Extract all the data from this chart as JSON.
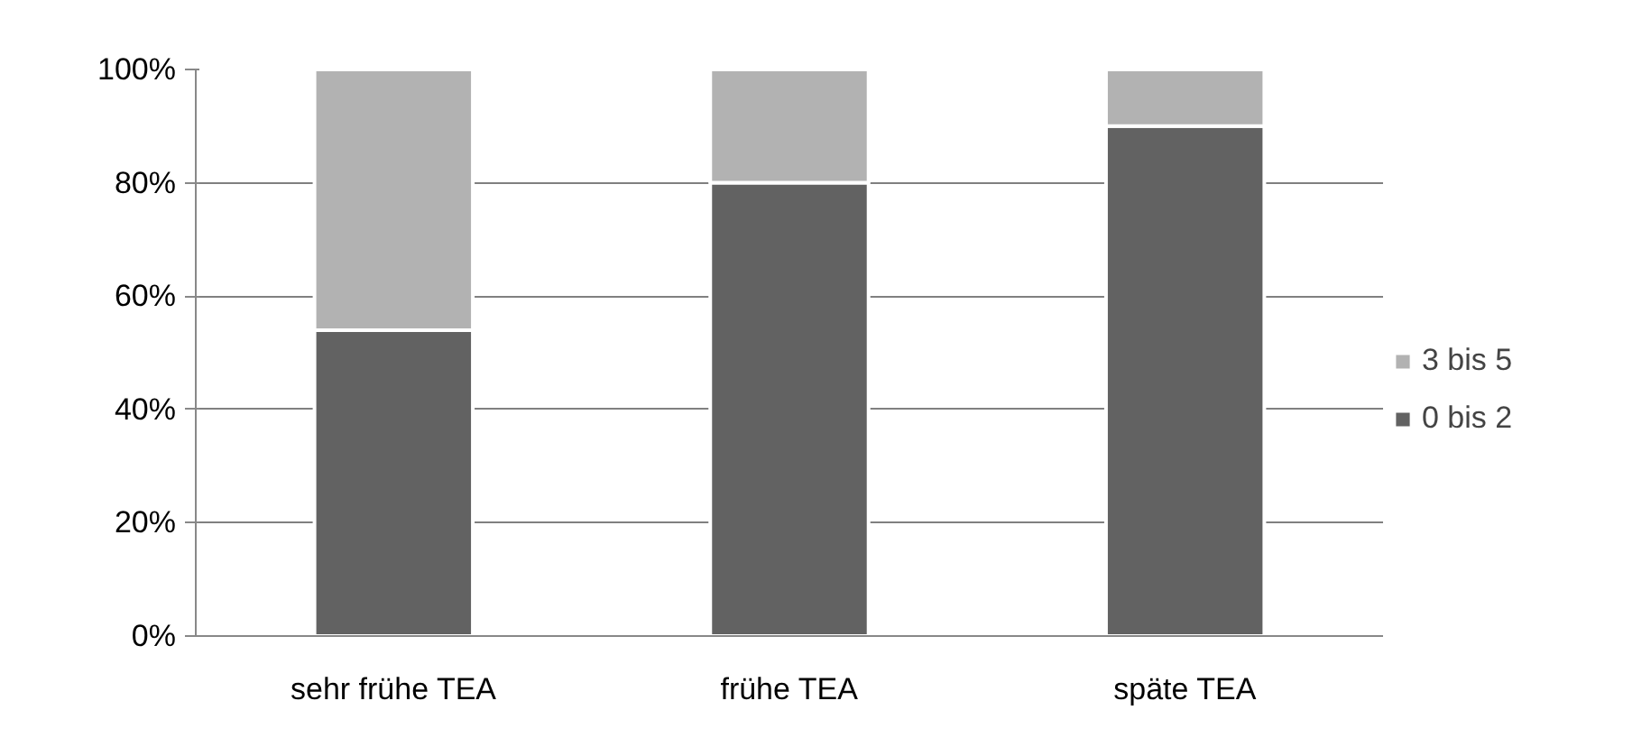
{
  "chart_data": {
    "type": "bar",
    "stacked": true,
    "categories": [
      "sehr frühe TEA",
      "frühe TEA",
      "späte TEA"
    ],
    "series": [
      {
        "name": "0 bis 2",
        "color": "#626262",
        "values": [
          54,
          80,
          90
        ]
      },
      {
        "name": "3 bis 5",
        "color": "#b2b2b2",
        "values": [
          46,
          20,
          10
        ]
      }
    ],
    "ylim": [
      0,
      100
    ],
    "yticks": [
      {
        "value": 0,
        "label": "0%"
      },
      {
        "value": 20,
        "label": "20%"
      },
      {
        "value": 40,
        "label": "40%"
      },
      {
        "value": 60,
        "label": "60%"
      },
      {
        "value": 80,
        "label": "80%"
      },
      {
        "value": 100,
        "label": "100%"
      }
    ],
    "grid": "y",
    "legend": "right"
  }
}
